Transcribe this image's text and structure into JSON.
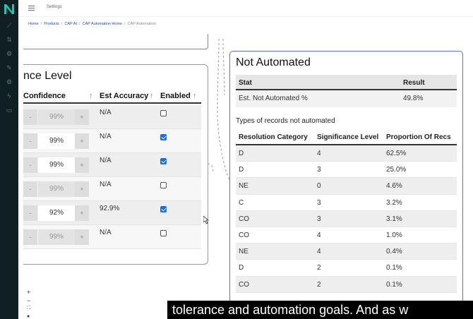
{
  "header": {
    "title": "Settings"
  },
  "breadcrumb": {
    "items": [
      "Home",
      "Products",
      "CAP AI",
      "CAP Automation Home"
    ],
    "current": "CAP Automation"
  },
  "left_card": {
    "title": "nce Level",
    "columns": {
      "confidence": "Confidence",
      "accuracy": "Est Accuracy",
      "enabled": "Enabled"
    },
    "rows": [
      {
        "value": "99%",
        "accuracy": "N/A",
        "enabled": false,
        "active": false
      },
      {
        "value": "99%",
        "accuracy": "N/A",
        "enabled": true,
        "active": true
      },
      {
        "value": "99%",
        "accuracy": "N/A",
        "enabled": true,
        "active": true
      },
      {
        "value": "99%",
        "accuracy": "N/A",
        "enabled": false,
        "active": false
      },
      {
        "value": "92%",
        "accuracy": "92.9%",
        "enabled": true,
        "active": true
      },
      {
        "value": "99%",
        "accuracy": "N/A",
        "enabled": false,
        "active": false
      }
    ],
    "minus": "-",
    "plus": "+"
  },
  "right_card": {
    "title": "Not Automated",
    "stat_table": {
      "headers": [
        "Stat",
        "Result"
      ],
      "rows": [
        [
          "Est. Not Automated %",
          "49.8%"
        ]
      ]
    },
    "types_label": "Types of records not automated",
    "res_table": {
      "headers": [
        "Resolution Category",
        "Significance Level",
        "Proportion Of Recs"
      ],
      "rows": [
        [
          "D",
          "4",
          "62.5%"
        ],
        [
          "D",
          "3",
          "25.0%"
        ],
        [
          "NE",
          "0",
          "4.6%"
        ],
        [
          "C",
          "3",
          "3.2%"
        ],
        [
          "CO",
          "3",
          "3.1%"
        ],
        [
          "CO",
          "4",
          "1.0%"
        ],
        [
          "NE",
          "4",
          "0.4%"
        ],
        [
          "D",
          "2",
          "0.1%"
        ],
        [
          "CO",
          "2",
          "0.1%"
        ]
      ]
    }
  },
  "zoom": {
    "in": "+",
    "out": "−"
  },
  "caption": "tolerance and automation goals. And as w",
  "colors": {
    "sidebar": "#0f1f22",
    "accent_blue": "#5a6fd0",
    "checkbox": "#1a6fe0"
  }
}
